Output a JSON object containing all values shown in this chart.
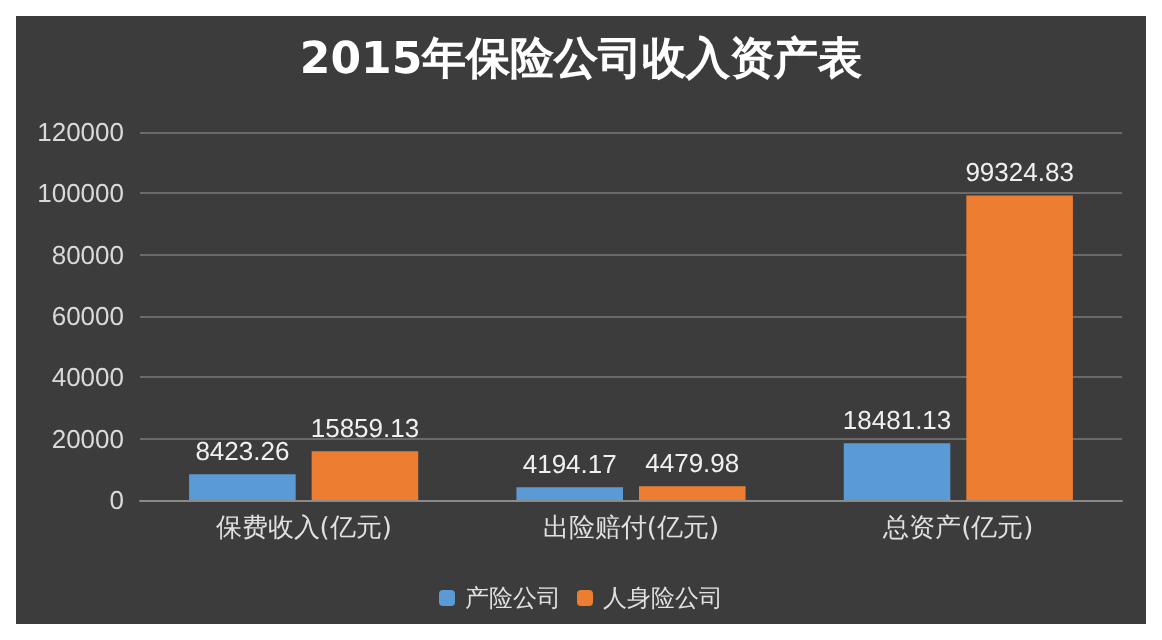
{
  "chart_data": {
    "type": "bar",
    "title": "2015年保险公司收入资产表",
    "categories": [
      "保费收入(亿元)",
      "出险赔付(亿元)",
      "总资产(亿元)"
    ],
    "series": [
      {
        "name": "产险公司",
        "color": "#5b9bd5",
        "values": [
          8423.26,
          4194.17,
          18481.13
        ]
      },
      {
        "name": "人身险公司",
        "color": "#ed7d31",
        "values": [
          15859.13,
          4479.98,
          99324.83
        ]
      }
    ],
    "ylim": [
      0,
      120000
    ],
    "yticks": [
      0,
      20000,
      40000,
      60000,
      80000,
      100000,
      120000
    ],
    "grid": "y",
    "legend": "bottom",
    "data_labels": true
  }
}
